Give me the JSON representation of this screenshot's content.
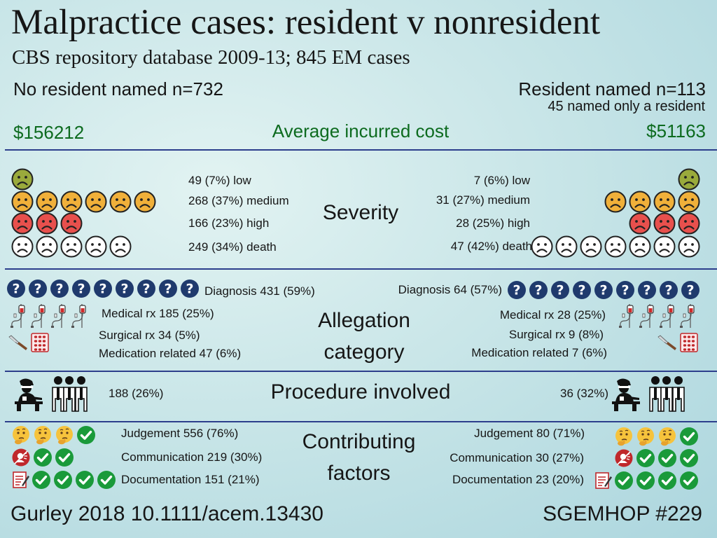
{
  "header": {
    "title": "Malpractice cases: resident v nonresident",
    "subtitle": "CBS repository database 2009-13; 845 EM cases"
  },
  "groups": {
    "left": {
      "title": "No resident named n=732",
      "cost": "$156212"
    },
    "right": {
      "title": "Resident named n=113",
      "note": "45 named only a resident",
      "cost": "$51163"
    }
  },
  "cost_label": "Average incurred cost",
  "sections": {
    "severity": {
      "label": "Severity",
      "left": {
        "low": "49 (7%) low",
        "medium": "268 (37%) medium",
        "high": "166 (23%) high",
        "death": "249 (34%) death"
      },
      "right": {
        "low": "7 (6%) low",
        "medium": "31 (27%) medium",
        "high": "28 (25%) high",
        "death": "47 (42%) death"
      }
    },
    "allegation": {
      "label_line1": "Allegation",
      "label_line2": "category",
      "left": {
        "diagnosis": "Diagnosis 431 (59%)",
        "medical": "Medical rx 185 (25%)",
        "surgical": "Surgical rx 34 (5%)",
        "medication": "Medication related 47 (6%)"
      },
      "right": {
        "diagnosis": "Diagnosis 64 (57%)",
        "medical": "Medical rx 28 (25%)",
        "surgical": "Surgical rx 9 (8%)",
        "medication": "Medication related 7 (6%)"
      }
    },
    "procedure": {
      "label": "Procedure involved",
      "left": "188 (26%)",
      "right": "36 (32%)"
    },
    "contributing": {
      "label_line1": "Contributing",
      "label_line2": "factors",
      "left": {
        "judgement": "Judgement 556 (76%)",
        "communication": "Communication 219 (30%)",
        "documentation": "Documentation 151 (21%)"
      },
      "right": {
        "judgement": "Judgement 80 (71%)",
        "communication": "Communication 30 (27%)",
        "documentation": "Documentation 23 (20%)"
      }
    }
  },
  "icon_counts": {
    "severity_left": {
      "low": 1,
      "medium": 6,
      "high": 3,
      "death": 5
    },
    "severity_right": {
      "low": 1,
      "medium": 4,
      "high": 3,
      "death": 7
    },
    "diagnosis_left": 9,
    "diagnosis_right": 9,
    "iv_left": 4,
    "iv_right": 4,
    "judgement_left": {
      "thinking": 3,
      "check": 1
    },
    "judgement_right": {
      "thinking": 3,
      "check": 1
    },
    "communication_left": {
      "check": 2
    },
    "communication_right": {
      "check": 3
    },
    "documentation_left": {
      "check": 4
    },
    "documentation_right": {
      "check": 4
    }
  },
  "icons": {
    "low": "sad-face-olive-icon",
    "medium": "sad-face-orange-icon",
    "high": "sad-face-red-icon",
    "death": "sad-face-white-icon",
    "diagnosis": "question-mark-icon",
    "medical": "iv-drip-icon",
    "surgical": "scalpel-icon",
    "medication": "pill-pack-icon",
    "procedure": "surgeon-icon",
    "staff": "medical-staff-icon",
    "judgement": "thinking-face-icon",
    "communication": "no-speaking-icon",
    "documentation": "memo-icon",
    "check": "check-mark-icon"
  },
  "colors": {
    "accent_green": "#0d6b1f",
    "divider": "#2c3e8c",
    "face_low": "#9aaa3c",
    "face_medium": "#f0b03a",
    "face_high": "#e8504d",
    "face_death": "#ffffff",
    "question_bg": "#1f3a6d",
    "check_bg": "#1a9a3a"
  },
  "footer": {
    "citation": "Gurley 2018 10.1111/acem.13430",
    "tag": "SGEMHOP #229"
  }
}
